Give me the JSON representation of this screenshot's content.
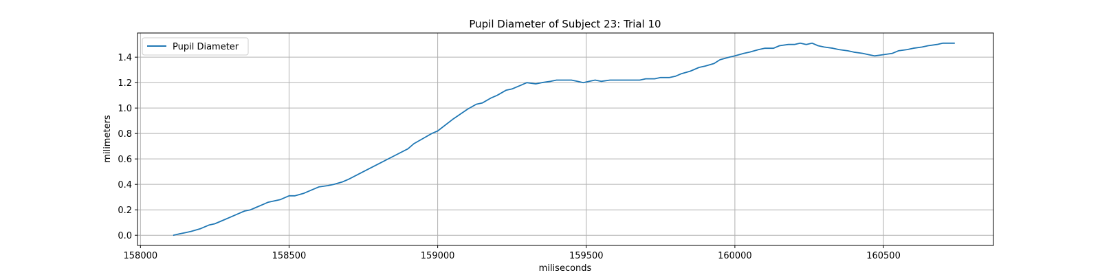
{
  "chart_data": {
    "type": "line",
    "title": "Pupil Diameter of Subject 23: Trial 10",
    "xlabel": "miliseconds",
    "ylabel": "milimeters",
    "xlim": [
      157990,
      160870
    ],
    "ylim": [
      -0.08,
      1.59
    ],
    "xticks": [
      158000,
      158500,
      159000,
      159500,
      160000,
      160500
    ],
    "yticks": [
      0.0,
      0.2,
      0.4,
      0.6,
      0.8,
      1.0,
      1.2,
      1.4
    ],
    "grid": true,
    "legend_position": "top-left",
    "line_color": "#1f77b4",
    "series": [
      {
        "name": "Pupil Diameter",
        "x": [
          158110,
          158130,
          158150,
          158170,
          158200,
          158230,
          158250,
          158280,
          158300,
          158330,
          158350,
          158370,
          158390,
          158410,
          158430,
          158450,
          158470,
          158490,
          158500,
          158520,
          158550,
          158580,
          158600,
          158630,
          158650,
          158680,
          158700,
          158750,
          158800,
          158850,
          158900,
          158920,
          158950,
          158980,
          159000,
          159050,
          159100,
          159130,
          159150,
          159180,
          159200,
          159230,
          159250,
          159280,
          159300,
          159330,
          159350,
          159380,
          159400,
          159420,
          159450,
          159470,
          159490,
          159510,
          159530,
          159550,
          159580,
          159600,
          159630,
          159650,
          159680,
          159700,
          159730,
          159750,
          159780,
          159800,
          159820,
          159850,
          159880,
          159900,
          159930,
          159950,
          159980,
          160000,
          160030,
          160050,
          160080,
          160100,
          160130,
          160150,
          160180,
          160200,
          160220,
          160240,
          160260,
          160280,
          160300,
          160330,
          160350,
          160380,
          160400,
          160430,
          160450,
          160470,
          160500,
          160530,
          160550,
          160580,
          160600,
          160630,
          160650,
          160680,
          160700,
          160740
        ],
        "y": [
          0.0,
          0.01,
          0.02,
          0.03,
          0.05,
          0.08,
          0.09,
          0.12,
          0.14,
          0.17,
          0.19,
          0.2,
          0.22,
          0.24,
          0.26,
          0.27,
          0.28,
          0.3,
          0.31,
          0.31,
          0.33,
          0.36,
          0.38,
          0.39,
          0.4,
          0.42,
          0.44,
          0.5,
          0.56,
          0.62,
          0.68,
          0.72,
          0.76,
          0.8,
          0.82,
          0.91,
          0.99,
          1.03,
          1.04,
          1.08,
          1.1,
          1.14,
          1.15,
          1.18,
          1.2,
          1.19,
          1.2,
          1.21,
          1.22,
          1.22,
          1.22,
          1.21,
          1.2,
          1.21,
          1.22,
          1.21,
          1.22,
          1.22,
          1.22,
          1.22,
          1.22,
          1.23,
          1.23,
          1.24,
          1.24,
          1.25,
          1.27,
          1.29,
          1.32,
          1.33,
          1.35,
          1.38,
          1.4,
          1.41,
          1.43,
          1.44,
          1.46,
          1.47,
          1.47,
          1.49,
          1.5,
          1.5,
          1.51,
          1.5,
          1.51,
          1.49,
          1.48,
          1.47,
          1.46,
          1.45,
          1.44,
          1.43,
          1.42,
          1.41,
          1.42,
          1.43,
          1.45,
          1.46,
          1.47,
          1.48,
          1.49,
          1.5,
          1.51,
          1.51
        ]
      }
    ]
  }
}
